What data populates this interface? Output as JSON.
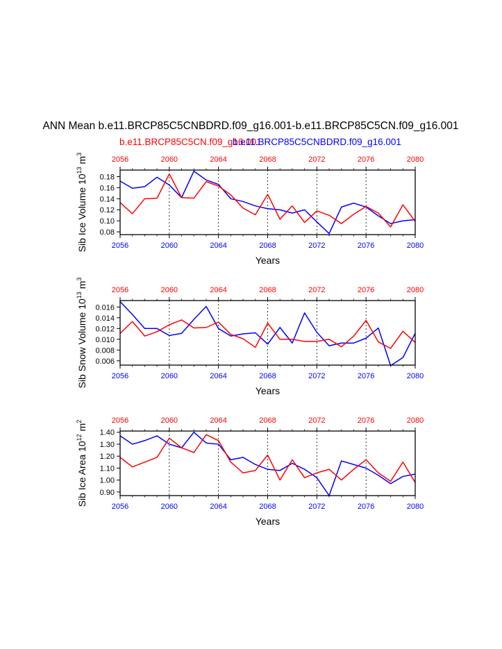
{
  "title": "ANN Mean b.e11.BRCP85C5CNBDRD.f09_g16.001-b.e11.BRCP85C5CN.f09_g16.001",
  "legend": {
    "red_label": "b.e11.BRCP85C5CN.f09_g16.001",
    "blue_label": "b.e11.BRCP85C5CNBDRD.f09_g16.001"
  },
  "colors": {
    "red": "#ff0000",
    "blue": "#0000ff",
    "axis": "#000000",
    "grid": "#000000"
  },
  "chart_data": [
    {
      "type": "line",
      "id": "ice-volume",
      "ylabel": "Sib Ice Volume 10",
      "ylabel_exp": "13",
      "ylabel_unit": " m",
      "ylabel_unit_exp": "3",
      "xlabel": "Years",
      "xlim": [
        2056,
        2080
      ],
      "ylim": [
        0.075,
        0.192
      ],
      "x_ticks": [
        2056,
        2060,
        2064,
        2068,
        2072,
        2076,
        2080
      ],
      "y_ticks": [
        "0.18",
        "0.16",
        "0.14",
        "0.12",
        "0.10",
        "0.08"
      ],
      "y_tick_values": [
        0.18,
        0.16,
        0.14,
        0.12,
        0.1,
        0.08
      ],
      "x": [
        2056,
        2057,
        2058,
        2059,
        2060,
        2061,
        2062,
        2063,
        2064,
        2065,
        2066,
        2067,
        2068,
        2069,
        2070,
        2071,
        2072,
        2073,
        2074,
        2075,
        2076,
        2077,
        2078,
        2079,
        2080
      ],
      "series": [
        {
          "name": "b.e11.BRCP85C5CNBDRD.f09_g16.001",
          "color": "blue",
          "values": [
            0.172,
            0.159,
            0.162,
            0.179,
            0.165,
            0.142,
            0.19,
            0.174,
            0.166,
            0.14,
            0.135,
            0.127,
            0.122,
            0.12,
            0.114,
            0.12,
            0.098,
            0.077,
            0.125,
            0.132,
            0.125,
            0.109,
            0.095,
            0.1,
            0.102
          ]
        },
        {
          "name": "b.e11.BRCP85C5CN.f09_g16.001",
          "color": "red",
          "values": [
            0.133,
            0.113,
            0.14,
            0.141,
            0.185,
            0.142,
            0.141,
            0.171,
            0.163,
            0.147,
            0.123,
            0.111,
            0.148,
            0.103,
            0.127,
            0.097,
            0.118,
            0.11,
            0.095,
            0.112,
            0.126,
            0.114,
            0.089,
            0.129,
            0.099
          ]
        }
      ]
    },
    {
      "type": "line",
      "id": "snow-volume",
      "ylabel": "Sib Snow Volume 10",
      "ylabel_exp": "13",
      "ylabel_unit": " m",
      "ylabel_unit_exp": "3",
      "xlabel": "Years",
      "xlim": [
        2056,
        2080
      ],
      "ylim": [
        0.0052,
        0.0172
      ],
      "x_ticks": [
        2056,
        2060,
        2064,
        2068,
        2072,
        2076,
        2080
      ],
      "y_ticks": [
        "0.016",
        "0.014",
        "0.012",
        "0.010",
        "0.008",
        "0.006"
      ],
      "y_tick_values": [
        0.016,
        0.014,
        0.012,
        0.01,
        0.008,
        0.006
      ],
      "x": [
        2056,
        2057,
        2058,
        2059,
        2060,
        2061,
        2062,
        2063,
        2064,
        2065,
        2066,
        2067,
        2068,
        2069,
        2070,
        2071,
        2072,
        2073,
        2074,
        2075,
        2076,
        2077,
        2078,
        2079,
        2080
      ],
      "series": [
        {
          "name": "b.e11.BRCP85C5CNBDRD.f09_g16.001",
          "color": "blue",
          "values": [
            0.017,
            0.0146,
            0.012,
            0.012,
            0.0107,
            0.0111,
            0.0137,
            0.0161,
            0.012,
            0.0106,
            0.011,
            0.0112,
            0.0091,
            0.0122,
            0.0093,
            0.0149,
            0.0113,
            0.0088,
            0.0093,
            0.0093,
            0.0102,
            0.0121,
            0.0051,
            0.0066,
            0.0111
          ]
        },
        {
          "name": "b.e11.BRCP85C5CN.f09_g16.001",
          "color": "red",
          "values": [
            0.0111,
            0.0133,
            0.0106,
            0.0114,
            0.0127,
            0.0136,
            0.0121,
            0.0122,
            0.0132,
            0.0109,
            0.0101,
            0.0085,
            0.013,
            0.01,
            0.01,
            0.0096,
            0.0096,
            0.01,
            0.0086,
            0.0106,
            0.0135,
            0.0095,
            0.0083,
            0.0115,
            0.0094
          ]
        }
      ]
    },
    {
      "type": "line",
      "id": "ice-area",
      "ylabel": "Sib Ice Area 10",
      "ylabel_exp": "12",
      "ylabel_unit": " m",
      "ylabel_unit_exp": "2",
      "xlabel": "Years",
      "xlim": [
        2056,
        2080
      ],
      "ylim": [
        0.87,
        1.41
      ],
      "x_ticks": [
        2056,
        2060,
        2064,
        2068,
        2072,
        2076,
        2080
      ],
      "y_ticks": [
        "1.40",
        "1.30",
        "1.20",
        "1.10",
        "1.00",
        "0.90"
      ],
      "y_tick_values": [
        1.4,
        1.3,
        1.2,
        1.1,
        1.0,
        0.9
      ],
      "x": [
        2056,
        2057,
        2058,
        2059,
        2060,
        2061,
        2062,
        2063,
        2064,
        2065,
        2066,
        2067,
        2068,
        2069,
        2070,
        2071,
        2072,
        2073,
        2074,
        2075,
        2076,
        2077,
        2078,
        2079,
        2080
      ],
      "series": [
        {
          "name": "b.e11.BRCP85C5CNBDRD.f09_g16.001",
          "color": "blue",
          "values": [
            1.37,
            1.3,
            1.33,
            1.37,
            1.3,
            1.27,
            1.4,
            1.31,
            1.3,
            1.17,
            1.19,
            1.13,
            1.09,
            1.08,
            1.14,
            1.09,
            1.02,
            0.87,
            1.16,
            1.13,
            1.1,
            1.04,
            0.97,
            1.03,
            1.05
          ]
        },
        {
          "name": "b.e11.BRCP85C5CN.f09_g16.001",
          "color": "red",
          "values": [
            1.19,
            1.11,
            1.15,
            1.19,
            1.35,
            1.27,
            1.23,
            1.38,
            1.33,
            1.15,
            1.06,
            1.08,
            1.21,
            1.0,
            1.17,
            1.02,
            1.06,
            1.09,
            1.0,
            1.09,
            1.17,
            1.06,
            0.99,
            1.15,
            0.98
          ]
        }
      ]
    }
  ]
}
